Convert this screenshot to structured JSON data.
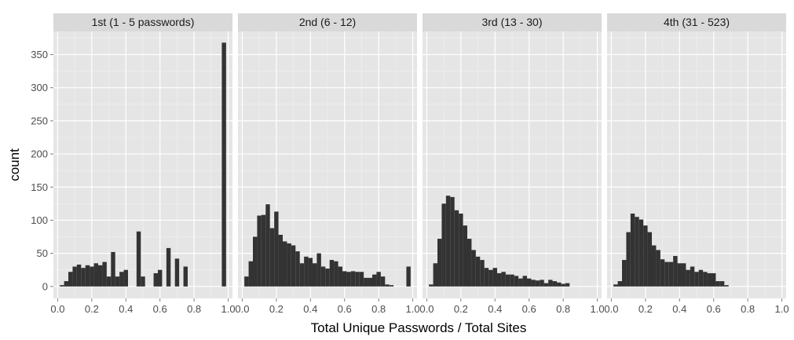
{
  "chart_data": {
    "type": "bar",
    "xlabel": "Total Unique Passwords / Total Sites",
    "ylabel": "count",
    "xlim": [
      -0.025,
      1.025
    ],
    "ylim": [
      -18,
      385
    ],
    "x_ticks": [
      "0.0",
      "0.2",
      "0.4",
      "0.6",
      "0.8",
      "1.0"
    ],
    "y_ticks": [
      "0",
      "50",
      "100",
      "150",
      "200",
      "250",
      "300",
      "350"
    ],
    "bin_width": 0.025,
    "grid": true,
    "panels": [
      {
        "label": "1st (1 - 5 passwords)",
        "bins": [
          {
            "x": 0.025,
            "count": 2
          },
          {
            "x": 0.05,
            "count": 8
          },
          {
            "x": 0.075,
            "count": 22
          },
          {
            "x": 0.1,
            "count": 30
          },
          {
            "x": 0.125,
            "count": 33
          },
          {
            "x": 0.15,
            "count": 28
          },
          {
            "x": 0.175,
            "count": 32
          },
          {
            "x": 0.2,
            "count": 30
          },
          {
            "x": 0.225,
            "count": 35
          },
          {
            "x": 0.25,
            "count": 32
          },
          {
            "x": 0.275,
            "count": 37
          },
          {
            "x": 0.3,
            "count": 15
          },
          {
            "x": 0.325,
            "count": 52
          },
          {
            "x": 0.35,
            "count": 15
          },
          {
            "x": 0.375,
            "count": 22
          },
          {
            "x": 0.4,
            "count": 25
          },
          {
            "x": 0.475,
            "count": 83
          },
          {
            "x": 0.5,
            "count": 15
          },
          {
            "x": 0.575,
            "count": 20
          },
          {
            "x": 0.6,
            "count": 25
          },
          {
            "x": 0.65,
            "count": 58
          },
          {
            "x": 0.7,
            "count": 42
          },
          {
            "x": 0.75,
            "count": 30
          },
          {
            "x": 0.975,
            "count": 368
          }
        ]
      },
      {
        "label": "2nd (6 - 12)",
        "bins": [
          {
            "x": 0.025,
            "count": 15
          },
          {
            "x": 0.05,
            "count": 38
          },
          {
            "x": 0.075,
            "count": 75
          },
          {
            "x": 0.1,
            "count": 107
          },
          {
            "x": 0.125,
            "count": 108
          },
          {
            "x": 0.15,
            "count": 124
          },
          {
            "x": 0.175,
            "count": 88
          },
          {
            "x": 0.2,
            "count": 113
          },
          {
            "x": 0.225,
            "count": 78
          },
          {
            "x": 0.25,
            "count": 68
          },
          {
            "x": 0.275,
            "count": 65
          },
          {
            "x": 0.3,
            "count": 62
          },
          {
            "x": 0.325,
            "count": 53
          },
          {
            "x": 0.35,
            "count": 35
          },
          {
            "x": 0.375,
            "count": 45
          },
          {
            "x": 0.4,
            "count": 43
          },
          {
            "x": 0.425,
            "count": 35
          },
          {
            "x": 0.45,
            "count": 50
          },
          {
            "x": 0.475,
            "count": 30
          },
          {
            "x": 0.5,
            "count": 27
          },
          {
            "x": 0.525,
            "count": 40
          },
          {
            "x": 0.55,
            "count": 38
          },
          {
            "x": 0.575,
            "count": 30
          },
          {
            "x": 0.6,
            "count": 23
          },
          {
            "x": 0.625,
            "count": 22
          },
          {
            "x": 0.65,
            "count": 23
          },
          {
            "x": 0.675,
            "count": 22
          },
          {
            "x": 0.7,
            "count": 22
          },
          {
            "x": 0.725,
            "count": 13
          },
          {
            "x": 0.75,
            "count": 13
          },
          {
            "x": 0.775,
            "count": 18
          },
          {
            "x": 0.8,
            "count": 22
          },
          {
            "x": 0.825,
            "count": 15
          },
          {
            "x": 0.85,
            "count": 3
          },
          {
            "x": 0.875,
            "count": 2
          },
          {
            "x": 0.975,
            "count": 30
          }
        ]
      },
      {
        "label": "3rd (13 - 30)",
        "bins": [
          {
            "x": 0.025,
            "count": 3
          },
          {
            "x": 0.05,
            "count": 35
          },
          {
            "x": 0.075,
            "count": 72
          },
          {
            "x": 0.1,
            "count": 125
          },
          {
            "x": 0.125,
            "count": 137
          },
          {
            "x": 0.15,
            "count": 135
          },
          {
            "x": 0.175,
            "count": 115
          },
          {
            "x": 0.2,
            "count": 110
          },
          {
            "x": 0.225,
            "count": 92
          },
          {
            "x": 0.25,
            "count": 72
          },
          {
            "x": 0.275,
            "count": 55
          },
          {
            "x": 0.3,
            "count": 45
          },
          {
            "x": 0.325,
            "count": 40
          },
          {
            "x": 0.35,
            "count": 28
          },
          {
            "x": 0.375,
            "count": 25
          },
          {
            "x": 0.4,
            "count": 28
          },
          {
            "x": 0.425,
            "count": 20
          },
          {
            "x": 0.45,
            "count": 22
          },
          {
            "x": 0.475,
            "count": 18
          },
          {
            "x": 0.5,
            "count": 18
          },
          {
            "x": 0.525,
            "count": 16
          },
          {
            "x": 0.55,
            "count": 12
          },
          {
            "x": 0.575,
            "count": 16
          },
          {
            "x": 0.6,
            "count": 12
          },
          {
            "x": 0.625,
            "count": 10
          },
          {
            "x": 0.65,
            "count": 9
          },
          {
            "x": 0.675,
            "count": 10
          },
          {
            "x": 0.7,
            "count": 5
          },
          {
            "x": 0.725,
            "count": 10
          },
          {
            "x": 0.75,
            "count": 8
          },
          {
            "x": 0.775,
            "count": 6
          },
          {
            "x": 0.8,
            "count": 4
          },
          {
            "x": 0.825,
            "count": 5
          }
        ]
      },
      {
        "label": "4th (31 - 523)",
        "bins": [
          {
            "x": 0.025,
            "count": 3
          },
          {
            "x": 0.05,
            "count": 8
          },
          {
            "x": 0.075,
            "count": 40
          },
          {
            "x": 0.1,
            "count": 82
          },
          {
            "x": 0.125,
            "count": 110
          },
          {
            "x": 0.15,
            "count": 105
          },
          {
            "x": 0.175,
            "count": 101
          },
          {
            "x": 0.2,
            "count": 92
          },
          {
            "x": 0.225,
            "count": 82
          },
          {
            "x": 0.25,
            "count": 62
          },
          {
            "x": 0.275,
            "count": 55
          },
          {
            "x": 0.3,
            "count": 41
          },
          {
            "x": 0.325,
            "count": 37
          },
          {
            "x": 0.35,
            "count": 37
          },
          {
            "x": 0.375,
            "count": 46
          },
          {
            "x": 0.4,
            "count": 35
          },
          {
            "x": 0.425,
            "count": 35
          },
          {
            "x": 0.45,
            "count": 25
          },
          {
            "x": 0.475,
            "count": 30
          },
          {
            "x": 0.5,
            "count": 22
          },
          {
            "x": 0.525,
            "count": 25
          },
          {
            "x": 0.55,
            "count": 22
          },
          {
            "x": 0.575,
            "count": 20
          },
          {
            "x": 0.6,
            "count": 20
          },
          {
            "x": 0.625,
            "count": 8
          },
          {
            "x": 0.65,
            "count": 8
          },
          {
            "x": 0.675,
            "count": 2
          }
        ]
      }
    ]
  }
}
